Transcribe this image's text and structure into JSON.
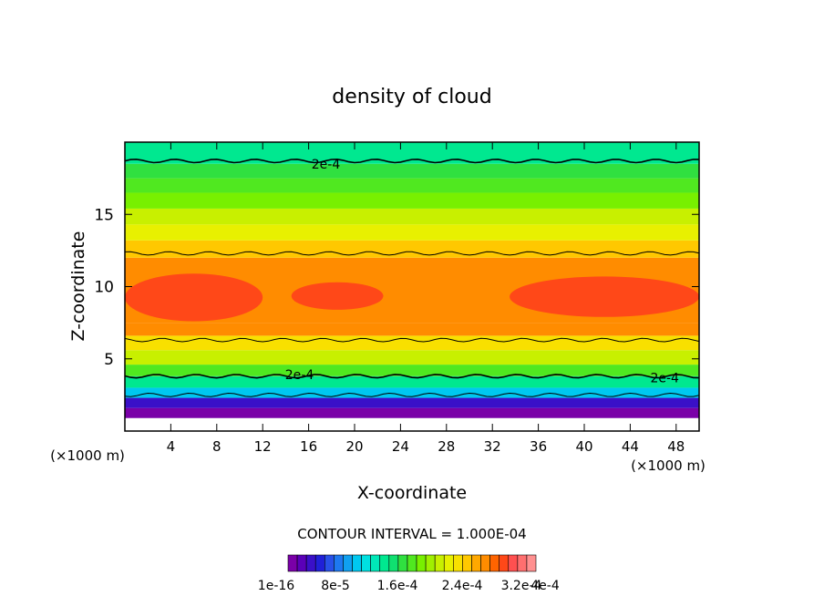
{
  "chart_data": {
    "type": "heatmap",
    "subtype": "filled contour",
    "title": "density of cloud",
    "xlabel": "X-coordinate",
    "ylabel": "Z-coordinate",
    "x_unit": "(×1000 m)",
    "x_unit_right": "(×1000 m)",
    "xlim": [
      0,
      50
    ],
    "ylim": [
      0,
      20
    ],
    "xticks": [
      4,
      8,
      12,
      16,
      20,
      24,
      28,
      32,
      36,
      40,
      44,
      48
    ],
    "yticks": [
      5,
      10,
      15
    ],
    "contour_interval_text": "CONTOUR INTERVAL = 1.000E-04",
    "contour_labels": [
      {
        "text": "2e-4",
        "x": 17.5,
        "z": 18.5
      },
      {
        "text": "2e-4",
        "x": 15.2,
        "z": 3.9
      },
      {
        "text": "2e-4",
        "x": 47.0,
        "z": 3.7
      }
    ],
    "field_bands": [
      {
        "z_bottom": 0.9,
        "z_top": 1.6,
        "level": 0.0
      },
      {
        "z_bottom": 1.6,
        "z_top": 2.3,
        "level": 0.25
      },
      {
        "z_bottom": 2.3,
        "z_top": 3.0,
        "level": 1.0
      },
      {
        "z_bottom": 3.0,
        "z_top": 3.8,
        "level": 1.6
      },
      {
        "z_bottom": 3.8,
        "z_top": 4.6,
        "level": 2.0
      },
      {
        "z_bottom": 4.6,
        "z_top": 5.6,
        "level": 2.4
      },
      {
        "z_bottom": 5.6,
        "z_top": 6.6,
        "level": 2.8
      },
      {
        "z_bottom": 6.6,
        "z_top": 7.5,
        "level": 3.2
      },
      {
        "z_bottom": 7.5,
        "z_top": 12.0,
        "level": 3.2
      },
      {
        "z_bottom": 12.0,
        "z_top": 13.2,
        "level": 2.9
      },
      {
        "z_bottom": 13.2,
        "z_top": 14.3,
        "level": 2.6
      },
      {
        "z_bottom": 14.3,
        "z_top": 15.4,
        "level": 2.4
      },
      {
        "z_bottom": 15.4,
        "z_top": 16.5,
        "level": 2.2
      },
      {
        "z_bottom": 16.5,
        "z_top": 17.5,
        "level": 2.0
      },
      {
        "z_bottom": 17.5,
        "z_top": 18.5,
        "level": 1.8
      },
      {
        "z_bottom": 18.5,
        "z_top": 20.0,
        "level": 1.6
      }
    ],
    "core_regions": [
      {
        "x_min": 0,
        "x_max": 12,
        "z_min": 7.6,
        "z_max": 10.9,
        "level": 3.6
      },
      {
        "x_min": 14.5,
        "x_max": 22.5,
        "z_min": 8.4,
        "z_max": 10.3,
        "level": 3.6
      },
      {
        "x_min": 33.5,
        "x_max": 50,
        "z_min": 7.9,
        "z_max": 10.7,
        "level": 3.6
      }
    ],
    "legend": {
      "tick_labels": [
        "1e-16",
        "8e-5",
        "1.6e-4",
        "2.4e-4",
        "3.2e-4",
        "4e-4"
      ],
      "n_levels": 27,
      "colors": [
        "#7a00a8",
        "#5a00b8",
        "#3a10c8",
        "#2020d8",
        "#2850e8",
        "#1e78f0",
        "#10a0f0",
        "#00c8f0",
        "#00e0e0",
        "#00e8b8",
        "#00e890",
        "#10e070",
        "#30e040",
        "#50e820",
        "#78f000",
        "#a0f000",
        "#c8f000",
        "#e8f000",
        "#f8e000",
        "#ffc800",
        "#ffa800",
        "#ff8c00",
        "#ff6400",
        "#ff4818",
        "#ff5050",
        "#ff6f6f",
        "#ff9090"
      ]
    }
  }
}
